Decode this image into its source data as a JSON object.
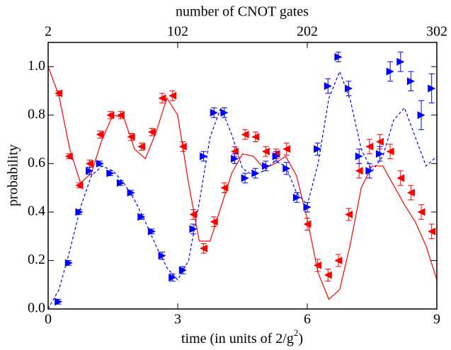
{
  "chart_data": {
    "type": "scatter",
    "xlabel": [
      "time  (in units of 2/g",
      "2",
      ")"
    ],
    "ylabel": "probability",
    "x2label": "number of CNOT gates",
    "xlim": [
      0,
      9
    ],
    "xticks": [
      0,
      3,
      6,
      9
    ],
    "x2lim": [
      2,
      302
    ],
    "x2ticks": [
      2,
      102,
      202,
      302
    ],
    "ylim": [
      0,
      1.1
    ],
    "yticks": [
      {
        "value": 0,
        "label": "0.0"
      },
      {
        "value": 0.2,
        "label": "0.2"
      },
      {
        "value": 0.4,
        "label": "0.4"
      },
      {
        "value": 0.6,
        "label": "0.6"
      },
      {
        "value": 0.8,
        "label": "0.8"
      },
      {
        "value": 1,
        "label": "1.0"
      }
    ],
    "series": [
      {
        "kind": "line",
        "color": "#ff0000",
        "dash": false,
        "x": [
          0,
          0.25,
          0.5,
          0.75,
          1,
          1.25,
          1.5,
          1.75,
          2,
          2.25,
          2.5,
          2.75,
          3,
          3.25,
          3.5,
          3.75,
          4,
          4.25,
          4.5,
          4.75,
          5,
          5.25,
          5.5,
          5.75,
          6,
          6.25,
          6.5,
          6.75,
          7,
          7.25,
          7.5,
          7.75,
          8,
          8.25,
          8.5,
          8.75,
          9
        ],
        "values": [
          1.0,
          0.88,
          0.66,
          0.52,
          0.56,
          0.7,
          0.8,
          0.79,
          0.66,
          0.62,
          0.73,
          0.87,
          0.8,
          0.52,
          0.28,
          0.28,
          0.42,
          0.56,
          0.64,
          0.63,
          0.58,
          0.6,
          0.63,
          0.55,
          0.37,
          0.15,
          0.04,
          0.08,
          0.27,
          0.5,
          0.59,
          0.59,
          0.51,
          0.43,
          0.36,
          0.26,
          0.12
        ]
      },
      {
        "kind": "line",
        "color": "#0000ff",
        "dash": true,
        "x": [
          0,
          0.25,
          0.5,
          0.75,
          1,
          1.25,
          1.5,
          1.75,
          2,
          2.25,
          2.5,
          2.75,
          3,
          3.25,
          3.5,
          3.75,
          4,
          4.25,
          4.5,
          4.75,
          5,
          5.25,
          5.5,
          5.75,
          6,
          6.25,
          6.5,
          6.75,
          7,
          7.25,
          7.5,
          7.75,
          8,
          8.25,
          8.5,
          8.75,
          9
        ],
        "values": [
          0.0,
          0.08,
          0.24,
          0.42,
          0.55,
          0.59,
          0.57,
          0.52,
          0.45,
          0.36,
          0.26,
          0.17,
          0.12,
          0.2,
          0.44,
          0.71,
          0.83,
          0.72,
          0.58,
          0.55,
          0.57,
          0.61,
          0.59,
          0.48,
          0.43,
          0.6,
          0.87,
          0.98,
          0.86,
          0.66,
          0.57,
          0.63,
          0.78,
          0.83,
          0.71,
          0.59,
          0.63
        ]
      },
      {
        "kind": "points",
        "marker": "left",
        "color": "#ff0000",
        "x": [
          0.24,
          0.48,
          0.72,
          0.96,
          1.2,
          1.44,
          1.68,
          1.92,
          2.16,
          2.4,
          2.64,
          2.88,
          3.12,
          3.36,
          3.6,
          3.84,
          4.08,
          4.32,
          4.56,
          4.8,
          5.04,
          5.28,
          5.52,
          6.0,
          6.24,
          6.48,
          6.72,
          6.96,
          7.2,
          7.44,
          7.68,
          7.92,
          8.16,
          8.4,
          8.64,
          8.88
        ],
        "values": [
          0.89,
          0.63,
          0.51,
          0.6,
          0.72,
          0.8,
          0.8,
          0.71,
          0.67,
          0.73,
          0.87,
          0.88,
          0.67,
          0.39,
          0.25,
          0.36,
          0.5,
          0.65,
          0.72,
          0.71,
          0.65,
          0.64,
          0.66,
          0.35,
          0.18,
          0.14,
          0.2,
          0.39,
          0.57,
          0.67,
          0.69,
          0.65,
          0.54,
          0.48,
          0.4,
          0.32
        ],
        "errors": [
          0.01,
          0.01,
          0.01,
          0.015,
          0.015,
          0.015,
          0.015,
          0.015,
          0.015,
          0.015,
          0.02,
          0.02,
          0.02,
          0.02,
          0.02,
          0.02,
          0.02,
          0.02,
          0.02,
          0.02,
          0.02,
          0.02,
          0.025,
          0.025,
          0.025,
          0.025,
          0.025,
          0.025,
          0.03,
          0.03,
          0.03,
          0.03,
          0.03,
          0.03,
          0.03,
          0.03
        ]
      },
      {
        "kind": "points",
        "marker": "right",
        "color": "#0000ff",
        "x": [
          0.24,
          0.48,
          0.72,
          0.96,
          1.2,
          1.44,
          1.68,
          1.92,
          2.16,
          2.4,
          2.64,
          2.88,
          3.12,
          3.36,
          3.6,
          3.84,
          4.08,
          4.32,
          4.56,
          4.8,
          5.04,
          5.28,
          5.52,
          5.76,
          6.0,
          6.24,
          6.48,
          6.72,
          6.96,
          7.2,
          7.44,
          7.68,
          7.92,
          8.16,
          8.4,
          8.64,
          8.88
        ],
        "values": [
          0.03,
          0.19,
          0.4,
          0.57,
          0.6,
          0.56,
          0.52,
          0.48,
          0.38,
          0.32,
          0.22,
          0.13,
          0.16,
          0.33,
          0.63,
          0.81,
          0.81,
          0.62,
          0.54,
          0.56,
          0.59,
          0.63,
          0.58,
          0.46,
          0.42,
          0.66,
          0.92,
          1.04,
          0.91,
          0.63,
          0.57,
          0.64,
          0.98,
          1.02,
          0.94,
          0.8,
          0.91
        ],
        "errors": [
          0.01,
          0.01,
          0.01,
          0.015,
          0.01,
          0.01,
          0.01,
          0.01,
          0.01,
          0.01,
          0.015,
          0.015,
          0.015,
          0.02,
          0.02,
          0.02,
          0.02,
          0.02,
          0.02,
          0.02,
          0.02,
          0.02,
          0.025,
          0.02,
          0.02,
          0.025,
          0.03,
          0.02,
          0.03,
          0.03,
          0.03,
          0.03,
          0.04,
          0.04,
          0.04,
          0.06,
          0.06
        ]
      }
    ]
  }
}
